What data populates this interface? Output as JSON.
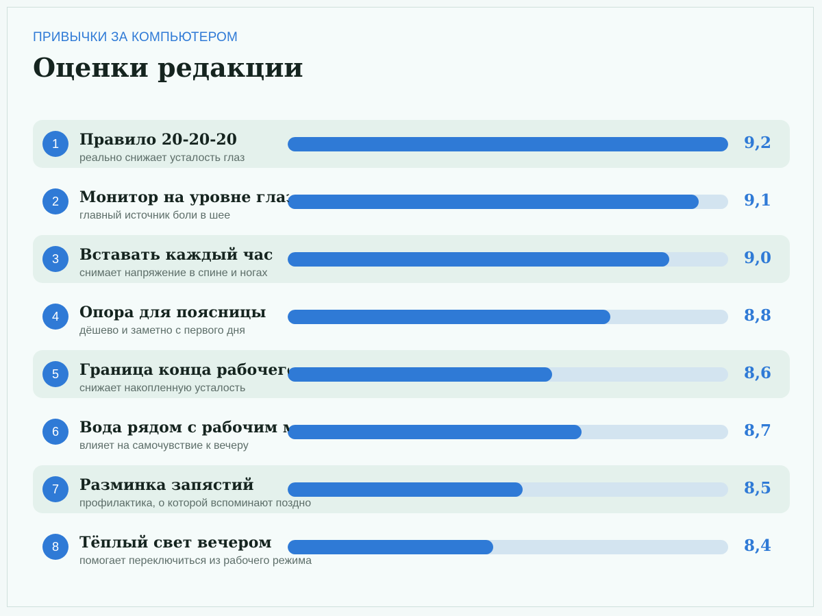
{
  "header": {
    "kicker": "ПРИВЫЧКИ ЗА КОМПЬЮТЕРОМ",
    "title": "Оценки редакции"
  },
  "colors": {
    "accent": "#2f7ad6",
    "track": "#d3e4f0",
    "row_shade": "#e4f1ec",
    "text_dark": "#15241f"
  },
  "chart_data": {
    "type": "bar",
    "orientation": "horizontal",
    "title": "Оценки редакции",
    "xlim": [
      8.0,
      9.2
    ],
    "categories": [
      "Правило 20-20-20",
      "Монитор на уровне глаз",
      "Вставать каждый час",
      "Опора для поясницы",
      "Граница конца рабочего дня",
      "Вода рядом с рабочим местом",
      "Разминка запястий",
      "Тёплый свет вечером"
    ],
    "values": [
      9.2,
      9.1,
      9.0,
      8.8,
      8.6,
      8.7,
      8.5,
      8.4
    ],
    "rows": [
      {
        "rank": "1",
        "label": "Правило 20-20-20",
        "sub": "реально снижает усталость глаз",
        "value": 9.2,
        "value_label": "9,2",
        "fill": 1.0,
        "shaded": true
      },
      {
        "rank": "2",
        "label": "Монитор на уровне глаз",
        "sub": "главный источник боли в шее",
        "value": 9.1,
        "value_label": "9,1",
        "fill": 0.933,
        "shaded": false
      },
      {
        "rank": "3",
        "label": "Вставать каждый час",
        "sub": "снимает напряжение в спине и ногах",
        "value": 9.0,
        "value_label": "9,0",
        "fill": 0.867,
        "shaded": true
      },
      {
        "rank": "4",
        "label": "Опора для поясницы",
        "sub": "дёшево и заметно с первого дня",
        "value": 8.8,
        "value_label": "8,8",
        "fill": 0.733,
        "shaded": false
      },
      {
        "rank": "5",
        "label": "Граница конца рабочего дня",
        "sub": "снижает накопленную усталость",
        "value": 8.6,
        "value_label": "8,6",
        "fill": 0.6,
        "shaded": true
      },
      {
        "rank": "6",
        "label": "Вода рядом с рабочим местом",
        "sub": "влияет на самочувствие к вечеру",
        "value": 8.7,
        "value_label": "8,7",
        "fill": 0.667,
        "shaded": false
      },
      {
        "rank": "7",
        "label": "Разминка запястий",
        "sub": "профилактика, о которой вспоминают поздно",
        "value": 8.5,
        "value_label": "8,5",
        "fill": 0.533,
        "shaded": true
      },
      {
        "rank": "8",
        "label": "Тёплый свет вечером",
        "sub": "помогает переключиться из рабочего режима",
        "value": 8.4,
        "value_label": "8,4",
        "fill": 0.467,
        "shaded": false
      }
    ]
  }
}
